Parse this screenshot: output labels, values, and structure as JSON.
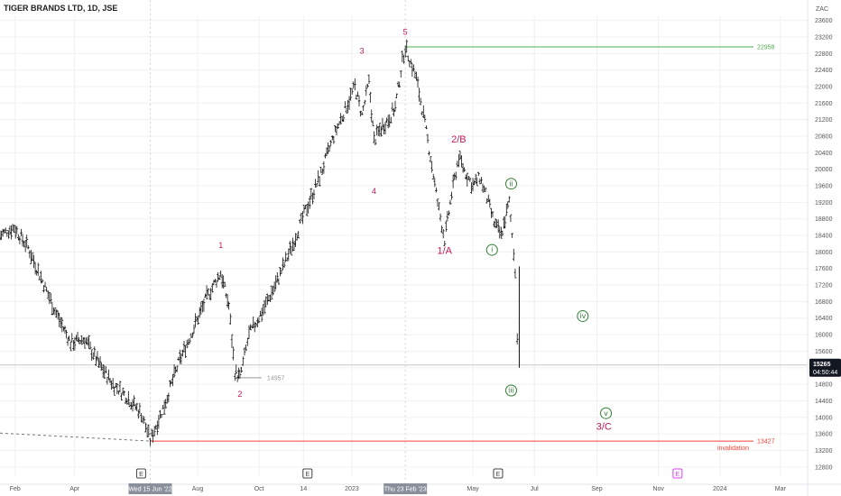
{
  "header": {
    "symbol_title": "TIGER BRANDS LTD, 1D, JSE",
    "currency": "ZAC"
  },
  "colors": {
    "background": "#ffffff",
    "bar": "#111111",
    "wave_label": "#c2185b",
    "sub_wave": "#2e7d32",
    "target_line": "#4caf50",
    "invalidation_line": "#f44336",
    "price_badge": "#131722",
    "gridline": "#f0f0f0",
    "earnings_future": "#e040fb"
  },
  "chart_data": {
    "type": "line",
    "title": "TIGER BRANDS LTD, 1D, JSE",
    "xlabel": "",
    "ylabel": "",
    "grid": true,
    "x_range": [
      "2022-01-17",
      "2024-03-28"
    ],
    "ylim": [
      12600,
      23700
    ],
    "y_ticks": [
      12800,
      13200,
      13600,
      14000,
      14400,
      14800,
      15200,
      15600,
      16000,
      16400,
      16800,
      17200,
      17600,
      18000,
      18400,
      18800,
      19200,
      19600,
      20000,
      20400,
      20800,
      21200,
      21600,
      22000,
      22400,
      22800,
      23200,
      23600
    ],
    "x_ticks": [
      {
        "label": "Feb",
        "date": "2022-02-01"
      },
      {
        "label": "Apr",
        "date": "2022-04-01"
      },
      {
        "label": "Aug",
        "date": "2022-08-01"
      },
      {
        "label": "Oct",
        "date": "2022-10-01"
      },
      {
        "label": "14",
        "date": "2022-11-14"
      },
      {
        "label": "2023",
        "date": "2023-01-01"
      },
      {
        "label": "May",
        "date": "2023-05-01"
      },
      {
        "label": "Jul",
        "date": "2023-07-01"
      },
      {
        "label": "Sep",
        "date": "2023-09-01"
      },
      {
        "label": "Nov",
        "date": "2023-11-01"
      },
      {
        "label": "2024",
        "date": "2024-01-01"
      },
      {
        "label": "Mar",
        "date": "2024-03-01"
      }
    ],
    "x_highlights": [
      {
        "label": "Wed 15 Jun '22",
        "date": "2022-06-15"
      },
      {
        "label": "Thu 23 Feb '23",
        "date": "2023-02-23"
      }
    ],
    "series": [
      {
        "values": [
          {
            "x": "2022-01-17",
            "y": 18400
          },
          {
            "x": "2022-01-31",
            "y": 18600
          },
          {
            "x": "2022-02-14",
            "y": 18100
          },
          {
            "x": "2022-02-28",
            "y": 17300
          },
          {
            "x": "2022-03-14",
            "y": 16500
          },
          {
            "x": "2022-03-28",
            "y": 15800
          },
          {
            "x": "2022-04-11",
            "y": 15900
          },
          {
            "x": "2022-04-25",
            "y": 15300
          },
          {
            "x": "2022-05-09",
            "y": 14800
          },
          {
            "x": "2022-05-23",
            "y": 14500
          },
          {
            "x": "2022-06-06",
            "y": 14100
          },
          {
            "x": "2022-06-15",
            "y": 13450
          },
          {
            "x": "2022-06-29",
            "y": 14300
          },
          {
            "x": "2022-07-13",
            "y": 15300
          },
          {
            "x": "2022-07-27",
            "y": 16100
          },
          {
            "x": "2022-08-10",
            "y": 16900
          },
          {
            "x": "2022-08-24",
            "y": 17500
          },
          {
            "x": "2022-09-01",
            "y": 16700
          },
          {
            "x": "2022-09-07",
            "y": 15100
          },
          {
            "x": "2022-09-12",
            "y": 14957
          },
          {
            "x": "2022-09-21",
            "y": 16000
          },
          {
            "x": "2022-10-05",
            "y": 16600
          },
          {
            "x": "2022-10-19",
            "y": 17300
          },
          {
            "x": "2022-11-02",
            "y": 18100
          },
          {
            "x": "2022-11-16",
            "y": 19000
          },
          {
            "x": "2022-11-30",
            "y": 19800
          },
          {
            "x": "2022-12-14",
            "y": 20800
          },
          {
            "x": "2022-12-28",
            "y": 21600
          },
          {
            "x": "2023-01-04",
            "y": 22000
          },
          {
            "x": "2023-01-11",
            "y": 21300
          },
          {
            "x": "2023-01-18",
            "y": 22100
          },
          {
            "x": "2023-01-23",
            "y": 20700
          },
          {
            "x": "2023-01-30",
            "y": 21000
          },
          {
            "x": "2023-02-06",
            "y": 21200
          },
          {
            "x": "2023-02-13",
            "y": 21500
          },
          {
            "x": "2023-02-20",
            "y": 22600
          },
          {
            "x": "2023-02-23",
            "y": 22958
          },
          {
            "x": "2023-03-06",
            "y": 22200
          },
          {
            "x": "2023-03-13",
            "y": 21300
          },
          {
            "x": "2023-03-20",
            "y": 20300
          },
          {
            "x": "2023-03-27",
            "y": 19200
          },
          {
            "x": "2023-04-03",
            "y": 18300
          },
          {
            "x": "2023-04-10",
            "y": 19400
          },
          {
            "x": "2023-04-17",
            "y": 20300
          },
          {
            "x": "2023-04-24",
            "y": 19900
          },
          {
            "x": "2023-05-01",
            "y": 19600
          },
          {
            "x": "2023-05-08",
            "y": 19800
          },
          {
            "x": "2023-05-15",
            "y": 19300
          },
          {
            "x": "2023-05-22",
            "y": 18700
          },
          {
            "x": "2023-05-29",
            "y": 18400
          },
          {
            "x": "2023-06-06",
            "y": 19200
          },
          {
            "x": "2023-06-12",
            "y": 17600
          },
          {
            "x": "2023-06-14",
            "y": 15900
          },
          {
            "x": "2023-06-16",
            "y": 15265
          }
        ]
      }
    ],
    "wave_labels": [
      {
        "text": "1",
        "x": "2022-08-24",
        "y": 18100
      },
      {
        "text": "2",
        "x": "2022-09-12",
        "y": 14500
      },
      {
        "text": "3",
        "x": "2023-01-11",
        "y": 22800
      },
      {
        "text": "4",
        "x": "2023-01-23",
        "y": 19400
      },
      {
        "text": "5",
        "x": "2023-02-23",
        "y": 23250
      },
      {
        "text": "1/A",
        "x": "2023-04-03",
        "y": 17950
      },
      {
        "text": "2/B",
        "x": "2023-04-17",
        "y": 20650
      },
      {
        "text": "3/C",
        "x": "2023-09-08",
        "y": 13700
      }
    ],
    "sub_wave_labels": [
      {
        "text": "i",
        "x": "2023-05-20",
        "y": 18050
      },
      {
        "text": "ii",
        "x": "2023-06-08",
        "y": 19650
      },
      {
        "text": "iii",
        "x": "2023-06-08",
        "y": 14650
      },
      {
        "text": "iv",
        "x": "2023-08-18",
        "y": 16450
      },
      {
        "text": "v",
        "x": "2023-09-10",
        "y": 14100
      }
    ],
    "levels": [
      {
        "label": "22958",
        "value": 22958,
        "color": "#4caf50"
      },
      {
        "label": "13427",
        "value": 13427,
        "color": "#f44336",
        "note": "invalidation"
      },
      {
        "label": "14957",
        "value": 14957,
        "color": "#999999"
      }
    ],
    "earnings_markers": [
      {
        "label": "E",
        "date": "2022-06-06",
        "future": false
      },
      {
        "label": "E",
        "date": "2022-11-18",
        "future": false
      },
      {
        "label": "E",
        "date": "2023-05-26",
        "future": false
      },
      {
        "label": "E",
        "date": "2023-11-20",
        "future": true
      }
    ],
    "last_price": {
      "value": 15265,
      "label": "15265",
      "countdown": "04:50:44"
    }
  }
}
